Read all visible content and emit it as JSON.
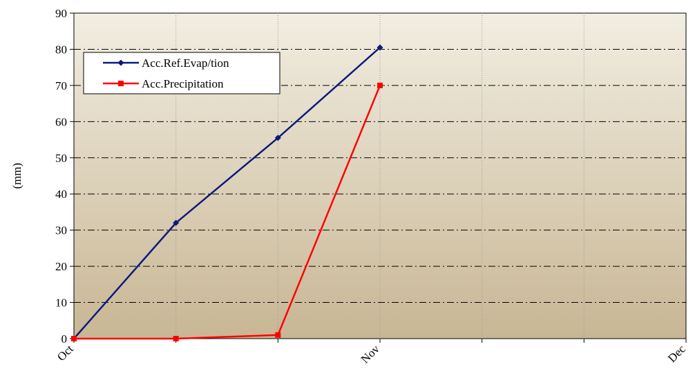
{
  "chart_data": {
    "type": "line",
    "title": "",
    "xlabel": "",
    "ylabel": "(mm)",
    "ylim": [
      0,
      90
    ],
    "yticks": [
      0,
      10,
      20,
      30,
      40,
      50,
      60,
      70,
      80,
      90
    ],
    "x_categories": [
      "Oct",
      "",
      "",
      "Nov",
      "",
      "",
      "Dec"
    ],
    "x_tick_labels": [
      {
        "index": 0,
        "label": "Oct"
      },
      {
        "index": 3,
        "label": "Nov"
      },
      {
        "index": 6,
        "label": "Dec"
      }
    ],
    "grid": true,
    "legend_position": "top-left",
    "background_gradient": [
      "#f2eee2",
      "#c8b694"
    ],
    "series": [
      {
        "name": "Acc.Ref.Evap/tion",
        "color": "#0b1a7a",
        "marker": "diamond",
        "x_index": [
          0,
          1,
          2,
          3
        ],
        "values": [
          0,
          32,
          55.5,
          80.5
        ]
      },
      {
        "name": "Acc.Precipitation",
        "color": "#ff0000",
        "marker": "square",
        "x_index": [
          0,
          1,
          2,
          3
        ],
        "values": [
          0,
          0,
          1,
          70
        ]
      }
    ]
  }
}
